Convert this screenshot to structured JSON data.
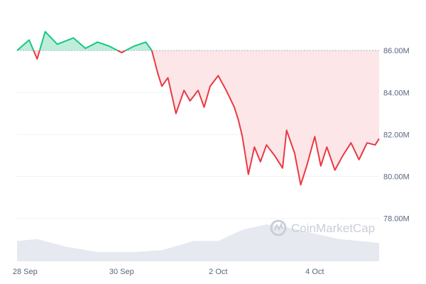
{
  "chart_data": {
    "type": "area",
    "baseline": 86.0,
    "y_unit": "M",
    "ylim": [
      76.5,
      88.0
    ],
    "y_ticks": [
      "86.00M",
      "84.00M",
      "82.00M",
      "80.00M",
      "78.00M"
    ],
    "y_tick_values": [
      86,
      84,
      82,
      80,
      78
    ],
    "x_ticks": [
      "28 Sep",
      "30 Sep",
      "2 Oct",
      "4 Oct"
    ],
    "x_tick_values": [
      "2024-09-28",
      "2024-09-30",
      "2024-10-02",
      "2024-10-04"
    ],
    "x_range": [
      "2024-09-27T20:00",
      "2024-10-05T08:00"
    ],
    "grid": true,
    "watermark": "CoinMarketCap",
    "colors": {
      "up": "#16c784",
      "down": "#ea3943",
      "up_fill": "#b7ecd6",
      "down_fill": "#fde2e4",
      "volume": "#e6e9ef",
      "grid": "#eff2f5",
      "baseline": "#a0a7b4"
    },
    "series": [
      {
        "points": [
          [
            "2024-09-27T20:00",
            86.0
          ],
          [
            "2024-09-28T02:00",
            86.5
          ],
          [
            "2024-09-28T06:00",
            85.6
          ],
          [
            "2024-09-28T10:00",
            86.9
          ],
          [
            "2024-09-28T16:00",
            86.3
          ],
          [
            "2024-09-29T00:00",
            86.6
          ],
          [
            "2024-09-29T06:00",
            86.1
          ],
          [
            "2024-09-29T12:00",
            86.4
          ],
          [
            "2024-09-29T18:00",
            86.2
          ],
          [
            "2024-09-30T00:00",
            85.9
          ],
          [
            "2024-09-30T06:00",
            86.2
          ],
          [
            "2024-09-30T12:00",
            86.4
          ],
          [
            "2024-09-30T15:00",
            86.0
          ],
          [
            "2024-09-30T18:00",
            84.9
          ],
          [
            "2024-09-30T20:00",
            84.3
          ],
          [
            "2024-09-30T23:00",
            84.7
          ],
          [
            "2024-10-01T03:00",
            83.0
          ],
          [
            "2024-10-01T07:00",
            84.1
          ],
          [
            "2024-10-01T10:00",
            83.6
          ],
          [
            "2024-10-01T14:00",
            84.1
          ],
          [
            "2024-10-01T17:00",
            83.3
          ],
          [
            "2024-10-01T20:00",
            84.3
          ],
          [
            "2024-10-02T00:00",
            84.8
          ],
          [
            "2024-10-02T04:00",
            84.1
          ],
          [
            "2024-10-02T08:00",
            83.3
          ],
          [
            "2024-10-02T10:00",
            82.7
          ],
          [
            "2024-10-02T12:00",
            81.9
          ],
          [
            "2024-10-02T15:00",
            80.1
          ],
          [
            "2024-10-02T18:00",
            81.4
          ],
          [
            "2024-10-02T21:00",
            80.7
          ],
          [
            "2024-10-03T00:00",
            81.5
          ],
          [
            "2024-10-03T04:00",
            81.0
          ],
          [
            "2024-10-03T08:00",
            80.4
          ],
          [
            "2024-10-03T10:00",
            82.2
          ],
          [
            "2024-10-03T14:00",
            81.1
          ],
          [
            "2024-10-03T17:00",
            79.6
          ],
          [
            "2024-10-03T20:00",
            80.5
          ],
          [
            "2024-10-04T00:00",
            81.9
          ],
          [
            "2024-10-04T03:00",
            80.5
          ],
          [
            "2024-10-04T06:00",
            81.4
          ],
          [
            "2024-10-04T10:00",
            80.3
          ],
          [
            "2024-10-04T14:00",
            81.0
          ],
          [
            "2024-10-04T18:00",
            81.6
          ],
          [
            "2024-10-04T22:00",
            80.8
          ],
          [
            "2024-10-05T02:00",
            81.6
          ],
          [
            "2024-10-05T06:00",
            81.5
          ],
          [
            "2024-10-05T08:00",
            81.8
          ]
        ]
      }
    ],
    "volume": [
      [
        "2024-09-27T20:00",
        0.55
      ],
      [
        "2024-09-28T06:00",
        0.6
      ],
      [
        "2024-09-28T20:00",
        0.4
      ],
      [
        "2024-09-29T12:00",
        0.25
      ],
      [
        "2024-09-30T06:00",
        0.25
      ],
      [
        "2024-09-30T20:00",
        0.3
      ],
      [
        "2024-10-01T12:00",
        0.55
      ],
      [
        "2024-10-02T00:00",
        0.55
      ],
      [
        "2024-10-02T12:00",
        0.85
      ],
      [
        "2024-10-03T00:00",
        1.0
      ],
      [
        "2024-10-03T12:00",
        0.9
      ],
      [
        "2024-10-04T00:00",
        0.75
      ],
      [
        "2024-10-04T12:00",
        0.6
      ],
      [
        "2024-10-05T08:00",
        0.5
      ]
    ]
  }
}
